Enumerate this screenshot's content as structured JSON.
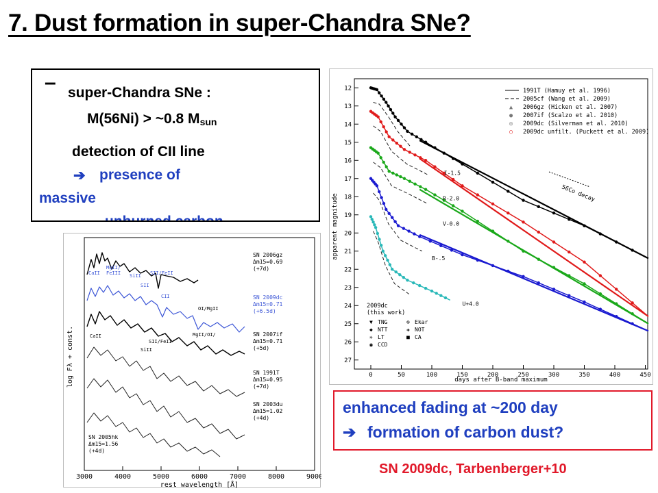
{
  "slide": {
    "title": "7. Dust formation in super-Chandra SNe?"
  },
  "textbox": {
    "dash": "–",
    "line1": "super-Chandra SNe :",
    "mass_prefix": "M(56Ni) > ~0.8 M",
    "mass_sub": "sun",
    "line3": "detection of CII line",
    "arrow": "➔",
    "line4": "presence of",
    "line5": "massive",
    "line6": "unburned carbon"
  },
  "callout": {
    "line1": "enhanced fading at ~200 day",
    "arrow": "➔",
    "line2": "formation of carbon dust?"
  },
  "citation": "SN 2009dc, Tarbenberger+10",
  "spectra_figure": {
    "ylabel": "log Fλ + const.",
    "xlabel": "rest wavelength [Å]",
    "x_ticks": [
      "3000",
      "4000",
      "5000",
      "6000",
      "7000",
      "8000",
      "9000"
    ],
    "spectrum_labels": [
      {
        "name": "SN 2006gz",
        "dm": "Δm15=0.69",
        "phase": "(+7d)"
      },
      {
        "name": "SN 2009dc",
        "dm": "Δm15=0.71",
        "phase": "(+6.5d)"
      },
      {
        "name": "SN 2007if",
        "dm": "Δm15=0.71",
        "phase": "(+5d)"
      },
      {
        "name": "SN 1991T",
        "dm": "Δm15=0.95",
        "phase": "(+7d)"
      },
      {
        "name": "SN 2003du",
        "dm": "Δm15=1.02",
        "phase": "(+4d)"
      }
    ],
    "lower_label": {
      "name": "SN 2005hk",
      "dm": "Δm15=1.56",
      "phase": "(+4d)"
    },
    "line_ids": [
      "CaII",
      "MgII/",
      "FeIII",
      "SII",
      "SiII",
      "SII/FeII",
      "CII",
      "OI/MgII",
      "MgII/OI/",
      "CaII",
      "SiII",
      "SII/FeII"
    ]
  },
  "lightcurve_figure": {
    "ylabel": "apparent magnitude",
    "xlabel": "days after B-band maximum",
    "x_ticks": [
      "0",
      "50",
      "100",
      "150",
      "200",
      "250",
      "300",
      "350",
      "400",
      "450"
    ],
    "y_ticks": [
      "12",
      "13",
      "14",
      "15",
      "16",
      "17",
      "18",
      "19",
      "20",
      "21",
      "22",
      "23",
      "24",
      "25",
      "26",
      "27"
    ],
    "legend": [
      "1991T (Hamuy et al. 1996)",
      "2005cf (Wang et al. 2009)",
      "2006gz (Hicken et al. 2007)",
      "2007if (Scalzo et al. 2010)",
      "2009dc (Silverman et al. 2010)",
      "2009dc unfilt. (Puckett et al. 2009)"
    ],
    "decay_label": "56Co decay",
    "band_offsets": [
      "I-1.5",
      "R-2.0",
      "V-0.0",
      "B-.5",
      "U+4.0"
    ],
    "instrument_title": "2009dc",
    "instrument_subtitle": "(this work)",
    "instruments": [
      "TNG",
      "NTT",
      "LT",
      "CCD",
      "Ekar",
      "NOT",
      "CA"
    ],
    "colors": {
      "I": "#000000",
      "R": "#e01a1a",
      "V": "#1aa81a",
      "B": "#1a1ad0",
      "U": "#28b8b8"
    }
  }
}
